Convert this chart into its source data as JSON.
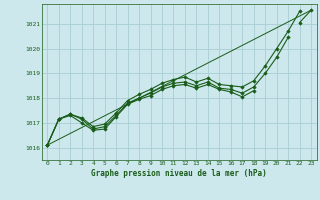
{
  "title": "Graphe pression niveau de la mer (hPa)",
  "bg_color": "#cce8ec",
  "grid_color": "#a8cdd4",
  "line_color": "#1a5c1a",
  "marker_color": "#1a5c1a",
  "xlim": [
    -0.5,
    23.5
  ],
  "ylim": [
    1015.5,
    1021.8
  ],
  "yticks": [
    1016,
    1017,
    1018,
    1019,
    1020,
    1021
  ],
  "xticks": [
    0,
    1,
    2,
    3,
    4,
    5,
    6,
    7,
    8,
    9,
    10,
    11,
    12,
    13,
    14,
    15,
    16,
    17,
    18,
    19,
    20,
    21,
    22,
    23
  ],
  "series": [
    [
      1016.1,
      1017.15,
      1017.35,
      1017.2,
      1016.85,
      1016.95,
      1017.4,
      1017.9,
      1018.15,
      1018.35,
      1018.6,
      1018.75,
      1018.85,
      1018.65,
      1018.8,
      1018.55,
      1018.5,
      1018.45,
      1018.7,
      1019.3,
      1020.0,
      1020.7,
      1021.5,
      null
    ],
    [
      1016.1,
      1017.15,
      1017.35,
      1017.15,
      1016.75,
      1016.85,
      1017.3,
      1017.8,
      1018.0,
      1018.2,
      1018.45,
      1018.6,
      1018.65,
      1018.5,
      1018.65,
      1018.4,
      1018.35,
      1018.2,
      1018.45,
      1019.0,
      1019.65,
      1020.45,
      null,
      null
    ],
    [
      1016.1,
      1017.15,
      1017.3,
      1017.0,
      1016.7,
      1016.75,
      1017.25,
      1017.75,
      1017.95,
      1018.1,
      1018.35,
      1018.5,
      1018.55,
      1018.4,
      1018.55,
      1018.35,
      1018.25,
      1018.05,
      1018.3,
      null,
      null,
      null,
      null,
      null
    ],
    [
      null,
      null,
      null,
      null,
      null,
      null,
      null,
      null,
      null,
      null,
      null,
      null,
      null,
      null,
      null,
      null,
      null,
      null,
      null,
      null,
      null,
      null,
      1021.05,
      1021.55
    ]
  ],
  "straight_line": [
    [
      0,
      23
    ],
    [
      1016.1,
      1021.55
    ]
  ]
}
